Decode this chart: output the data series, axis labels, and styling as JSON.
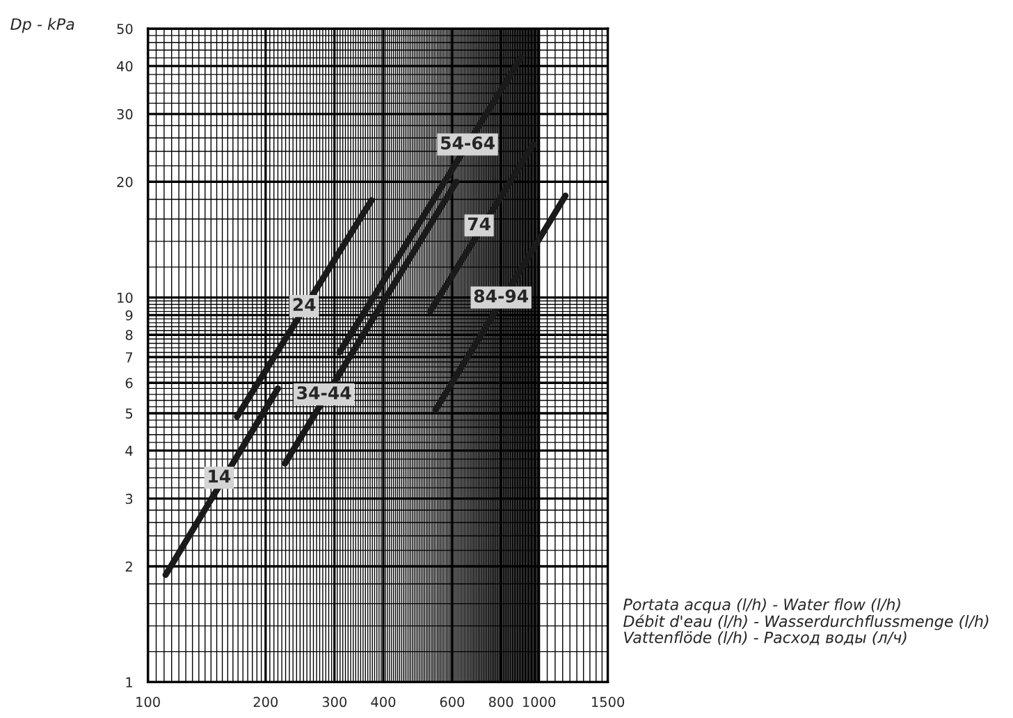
{
  "chart_data": {
    "type": "line",
    "ylabel": "Dp - kPa",
    "xlabel": "Portata acqua (l/h) - Water flow (l/h)\nDébit d'eau (l/h) - Wasserdurchflussmenge (l/h)\nVattenflöde (l/h) - Расход воды (л/ч)",
    "log": "xy",
    "xlim": [
      100,
      1500
    ],
    "ylim": [
      1,
      50
    ],
    "xticks": [
      100,
      200,
      300,
      400,
      600,
      800,
      1000,
      1500
    ],
    "yticks": [
      1,
      2,
      3,
      4,
      5,
      6,
      7,
      8,
      9,
      10,
      20,
      30,
      40,
      50
    ],
    "grid": true,
    "legend": false,
    "marker": "none",
    "line_style": "solid",
    "series": [
      {
        "color": "#1a1a1a",
        "x": [
          111,
          215
        ],
        "values": [
          1.9,
          5.8
        ]
      },
      {
        "color": "#1a1a1a",
        "x": [
          169,
          373
        ],
        "values": [
          4.9,
          17.9
        ]
      },
      {
        "color": "#1a1a1a",
        "x": [
          224,
          615
        ],
        "values": [
          3.7,
          20
        ]
      },
      {
        "color": "#1a1a1a",
        "x": [
          309,
          899
        ],
        "values": [
          7.2,
          42
        ]
      },
      {
        "color": "#1a1a1a",
        "x": [
          527,
          967
        ],
        "values": [
          9.2,
          25
        ]
      },
      {
        "color": "#1a1a1a",
        "x": [
          544,
          1169
        ],
        "values": [
          5.1,
          18.4
        ]
      }
    ],
    "annotations": [
      {
        "text": "14",
        "x": 152,
        "y": 3.4
      },
      {
        "text": "24",
        "x": 251,
        "y": 9.5
      },
      {
        "text": "34-44",
        "x": 282,
        "y": 5.6
      },
      {
        "text": "54-64",
        "x": 657,
        "y": 25
      },
      {
        "text": "74",
        "x": 703,
        "y": 15.4
      },
      {
        "text": "84-94",
        "x": 800,
        "y": 10
      }
    ]
  }
}
